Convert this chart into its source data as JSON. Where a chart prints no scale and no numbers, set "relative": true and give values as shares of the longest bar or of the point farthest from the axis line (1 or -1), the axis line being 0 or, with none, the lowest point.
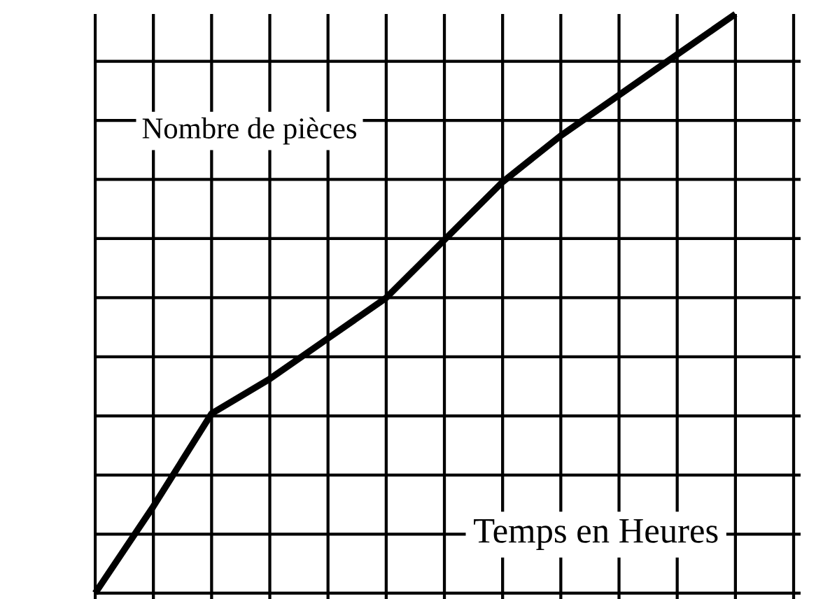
{
  "chart_data": {
    "type": "line",
    "xlabel": "Temps en Heures",
    "ylabel": "Nombre de pièces",
    "relative": true,
    "grid": true,
    "categories": [
      null,
      null,
      null,
      null,
      null,
      null,
      null,
      null,
      null,
      null,
      null,
      null,
      null
    ],
    "series": [
      {
        "color": "#000000",
        "values": [
          0,
          0.15,
          0.31,
          0.37,
          0.44,
          0.51,
          0.61,
          0.71,
          0.79,
          0.86,
          0.93,
          1,
          null
        ]
      }
    ]
  }
}
